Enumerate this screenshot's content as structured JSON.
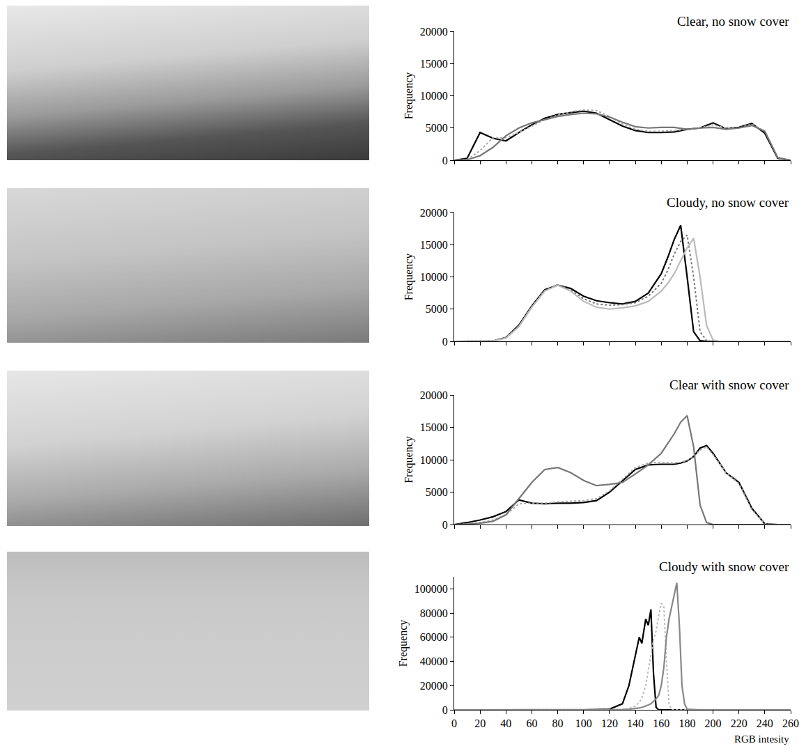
{
  "chart_data": [
    {
      "type": "line",
      "title": "Clear, no snow cover",
      "ylabel": "Frequency",
      "x": [
        0,
        10,
        20,
        30,
        40,
        50,
        60,
        70,
        80,
        90,
        100,
        110,
        120,
        130,
        140,
        150,
        160,
        170,
        180,
        190,
        200,
        210,
        220,
        230,
        240,
        250,
        260
      ],
      "series": [
        {
          "color": "#000000",
          "line_style": "solid",
          "values": [
            0,
            300,
            4300,
            3400,
            3000,
            4300,
            5500,
            6500,
            7100,
            7400,
            7600,
            7300,
            6300,
            5300,
            4600,
            4300,
            4300,
            4400,
            4800,
            5000,
            5800,
            4900,
            5100,
            5700,
            4200,
            300,
            0
          ]
        },
        {
          "color": "#aaaaaa",
          "line_style": "dotted",
          "values": [
            0,
            100,
            1500,
            3500,
            3500,
            4300,
            5300,
            6300,
            7000,
            7500,
            7800,
            7700,
            6800,
            5600,
            4800,
            4500,
            4500,
            4600,
            4800,
            5000,
            5500,
            5000,
            5000,
            5600,
            4500,
            400,
            0
          ]
        },
        {
          "color": "#777777",
          "line_style": "solid",
          "values": [
            0,
            50,
            700,
            2000,
            3800,
            5000,
            5800,
            6300,
            6800,
            7100,
            7300,
            7200,
            6700,
            5900,
            5200,
            5000,
            5100,
            5100,
            4800,
            5000,
            5100,
            4800,
            5000,
            5400,
            4500,
            400,
            0
          ]
        }
      ],
      "xlim": [
        0,
        260
      ],
      "xticks": [
        0,
        20,
        40,
        60,
        80,
        100,
        120,
        140,
        160,
        180,
        200,
        220,
        240,
        260
      ],
      "ylim": [
        0,
        20000
      ],
      "yticks": [
        0,
        5000,
        10000,
        15000,
        20000
      ],
      "grid": false,
      "tick_labels": "y"
    },
    {
      "type": "line",
      "title": "Cloudy, no snow cover",
      "ylabel": "Frequency",
      "x": [
        0,
        10,
        20,
        30,
        40,
        50,
        60,
        70,
        80,
        90,
        100,
        110,
        120,
        130,
        140,
        150,
        160,
        165,
        170,
        175,
        180,
        185,
        190,
        195,
        200,
        205,
        210,
        220,
        230,
        240,
        250,
        260
      ],
      "series": [
        {
          "color": "#000000",
          "line_style": "solid",
          "values": [
            0,
            0,
            0,
            50,
            600,
            2500,
            5500,
            8000,
            8700,
            8200,
            7000,
            6300,
            6000,
            5800,
            6200,
            7500,
            10500,
            13000,
            15800,
            18000,
            10000,
            1500,
            100,
            0,
            0,
            0,
            0,
            0,
            0,
            0,
            0,
            0
          ]
        },
        {
          "color": "#777777",
          "line_style": "dotted",
          "values": [
            0,
            0,
            0,
            50,
            600,
            2400,
            5400,
            7900,
            8800,
            8000,
            6600,
            5800,
            5600,
            5700,
            6000,
            7000,
            9000,
            11000,
            13500,
            15500,
            16500,
            10000,
            1500,
            100,
            0,
            0,
            0,
            0,
            0,
            0,
            0,
            0
          ]
        },
        {
          "color": "#bbbbbb",
          "line_style": "solid",
          "values": [
            0,
            0,
            0,
            50,
            500,
            2300,
            5300,
            7800,
            8700,
            7800,
            6200,
            5300,
            5000,
            5200,
            5500,
            6200,
            7800,
            9000,
            10500,
            12500,
            14500,
            16000,
            10000,
            2500,
            200,
            0,
            0,
            0,
            0,
            0,
            0,
            0
          ]
        }
      ],
      "xlim": [
        0,
        260
      ],
      "xticks": [
        0,
        20,
        40,
        60,
        80,
        100,
        120,
        140,
        160,
        180,
        200,
        220,
        240,
        260
      ],
      "ylim": [
        0,
        20000
      ],
      "yticks": [
        0,
        5000,
        10000,
        15000,
        20000
      ],
      "grid": false,
      "tick_labels": "y"
    },
    {
      "type": "line",
      "title": "Clear with snow cover",
      "ylabel": "Frequency",
      "x": [
        0,
        10,
        20,
        30,
        40,
        50,
        60,
        70,
        80,
        90,
        100,
        110,
        120,
        130,
        140,
        150,
        160,
        170,
        175,
        180,
        185,
        190,
        195,
        200,
        210,
        220,
        230,
        240,
        250,
        260
      ],
      "series": [
        {
          "color": "#000000",
          "line_style": "solid",
          "values": [
            0,
            300,
            700,
            1200,
            2000,
            3800,
            3300,
            3200,
            3300,
            3300,
            3400,
            3700,
            5000,
            6800,
            8500,
            9200,
            9300,
            9300,
            9500,
            9800,
            10500,
            11800,
            12200,
            11000,
            8000,
            6500,
            2500,
            100,
            0,
            0
          ]
        },
        {
          "color": "#aaaaaa",
          "line_style": "dotted",
          "values": [
            0,
            100,
            300,
            700,
            1500,
            3200,
            3300,
            3300,
            3500,
            3600,
            3700,
            4000,
            5200,
            7000,
            8800,
            9500,
            9600,
            9500,
            9600,
            9900,
            10500,
            11500,
            12000,
            10800,
            8000,
            6300,
            2300,
            100,
            0,
            0
          ]
        },
        {
          "color": "#777777",
          "line_style": "solid",
          "values": [
            0,
            50,
            200,
            500,
            1500,
            4000,
            6500,
            8500,
            8800,
            8000,
            6800,
            6000,
            6200,
            6500,
            7800,
            9200,
            11000,
            14000,
            15800,
            16800,
            12000,
            3000,
            300,
            0,
            0,
            0,
            0,
            0,
            0,
            0
          ]
        }
      ],
      "xlim": [
        0,
        260
      ],
      "xticks": [
        0,
        20,
        40,
        60,
        80,
        100,
        120,
        140,
        160,
        180,
        200,
        220,
        240,
        260
      ],
      "ylim": [
        0,
        20000
      ],
      "yticks": [
        0,
        5000,
        10000,
        15000,
        20000
      ],
      "grid": false,
      "tick_labels": "y"
    },
    {
      "type": "line",
      "title": "Cloudy with snow cover",
      "ylabel": "Frequency",
      "xlabel": "RGB intesity",
      "x": [
        0,
        100,
        120,
        130,
        135,
        140,
        143,
        145,
        148,
        150,
        152,
        154,
        156,
        158,
        160,
        162,
        164,
        166,
        168,
        170,
        172,
        174,
        176,
        178,
        180,
        190,
        260
      ],
      "series": [
        {
          "color": "#000000",
          "line_style": "solid",
          "values": [
            0,
            0,
            500,
            5000,
            20000,
            45000,
            60000,
            55000,
            75000,
            70000,
            83000,
            30000,
            2000,
            0,
            0,
            0,
            0,
            0,
            0,
            0,
            0,
            0,
            0,
            0,
            0,
            0,
            0
          ]
        },
        {
          "color": "#bbbbbb",
          "line_style": "dotted",
          "values": [
            0,
            0,
            0,
            200,
            1000,
            3000,
            6000,
            10000,
            20000,
            32000,
            45000,
            58000,
            65000,
            78000,
            88000,
            85000,
            40000,
            5000,
            0,
            0,
            0,
            0,
            0,
            0,
            0,
            0,
            0
          ]
        },
        {
          "color": "#888888",
          "line_style": "solid",
          "values": [
            0,
            0,
            0,
            200,
            500,
            1000,
            1500,
            2000,
            3000,
            4000,
            5000,
            7000,
            9000,
            12000,
            20000,
            35000,
            60000,
            75000,
            85000,
            95000,
            105000,
            70000,
            20000,
            5000,
            500,
            0,
            0
          ]
        }
      ],
      "xlim": [
        0,
        260
      ],
      "xticks": [
        0,
        20,
        40,
        60,
        80,
        100,
        120,
        140,
        160,
        180,
        200,
        220,
        240,
        260
      ],
      "ylim": [
        0,
        110000
      ],
      "yticks": [
        0,
        20000,
        40000,
        60000,
        80000,
        100000
      ],
      "grid": false
    }
  ]
}
